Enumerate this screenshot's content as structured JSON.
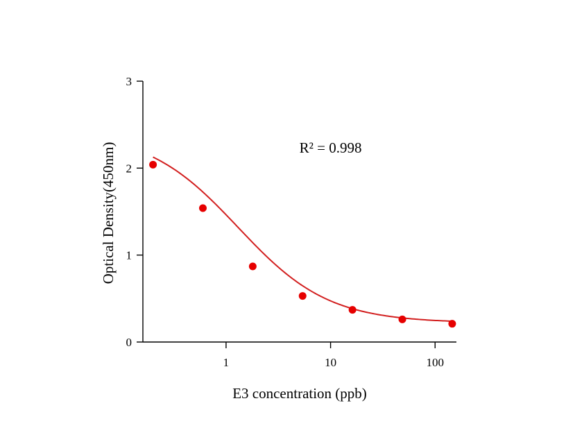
{
  "chart_data": {
    "type": "scatter",
    "title": "",
    "xlabel": "E3 concentration (ppb)",
    "ylabel": "Optical Density(450nm)",
    "x_scale": "log",
    "xlim": [
      0.16,
      160
    ],
    "ylim": [
      0,
      3
    ],
    "x_ticks": [
      {
        "value": 1,
        "label": "1"
      },
      {
        "value": 10,
        "label": "10"
      },
      {
        "value": 100,
        "label": "100"
      }
    ],
    "y_ticks": [
      {
        "value": 0,
        "label": "0"
      },
      {
        "value": 1,
        "label": "1"
      },
      {
        "value": 2,
        "label": "2"
      },
      {
        "value": 3,
        "label": "3"
      }
    ],
    "grid": false,
    "series": [
      {
        "kind": "points",
        "color": "#e60000",
        "x": [
          0.2,
          0.6,
          1.8,
          5.4,
          16.2,
          48.6,
          145.8
        ],
        "y": [
          2.04,
          1.54,
          0.87,
          0.53,
          0.37,
          0.26,
          0.21
        ]
      },
      {
        "kind": "fit-curve",
        "color": "#d21e1e",
        "model": "four-parameter logistic",
        "params": {
          "top": 2.42,
          "bottom": 0.22,
          "ec50": 1.3,
          "hill": 1.0
        },
        "x_range": [
          0.2,
          145.8
        ]
      }
    ],
    "annotations": [
      {
        "text": "R² = 0.998",
        "x": 10,
        "y": 2.18
      }
    ]
  }
}
